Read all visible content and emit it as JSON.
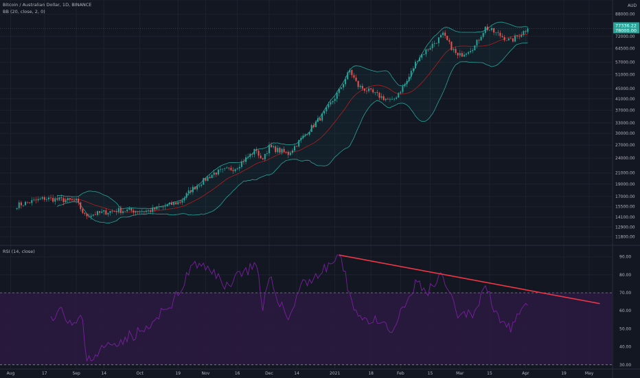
{
  "header": {
    "symbol_line": "Bitcoin / Australian Dollar, 1D, BINANCE",
    "bb_legend": "BB (20, close, 2, 0)",
    "rsi_legend": "RSI (14, close)",
    "currency": "AUD"
  },
  "colors": {
    "background": "#131722",
    "up_candle": "#26a69a",
    "down_candle": "#ef5350",
    "bb_band": "#26a69a",
    "bb_basis": "#b71c1c",
    "rsi_line": "#7b1fa2",
    "rsi_band_fill": "#2a1a3f",
    "trendline": "#f23645",
    "price_tag": "#26a69a"
  },
  "chart_data": [
    {
      "type": "candlestick",
      "name": "price",
      "y_scale": "log",
      "ylim": [
        11000,
        100000
      ],
      "y_ticks": [
        "100000.00",
        "88000.00",
        "72000.00",
        "64500.00",
        "57000.00",
        "51000.00",
        "45000.00",
        "41000.00",
        "37000.00",
        "33000.00",
        "30000.00",
        "27000.00",
        "24000.00",
        "21000.00",
        "19000.00",
        "17000.00",
        "15500.00",
        "14100.00",
        "12900.00",
        "11800.00"
      ],
      "last_price": "77336.22",
      "last_price_sub": "78000.00",
      "bollinger_bands": {
        "length": 20,
        "source": "close",
        "mult": 2,
        "offset": 0
      },
      "close_keypoints": [
        {
          "date": "2020-08-04",
          "close": 15700
        },
        {
          "date": "2020-08-17",
          "close": 16700
        },
        {
          "date": "2020-09-01",
          "close": 16300
        },
        {
          "date": "2020-09-05",
          "close": 14300
        },
        {
          "date": "2020-09-20",
          "close": 15000
        },
        {
          "date": "2020-10-05",
          "close": 14900
        },
        {
          "date": "2020-10-20",
          "close": 16200
        },
        {
          "date": "2020-10-25",
          "close": 18000
        },
        {
          "date": "2020-11-05",
          "close": 21000
        },
        {
          "date": "2020-11-15",
          "close": 22000
        },
        {
          "date": "2020-11-25",
          "close": 26000
        },
        {
          "date": "2020-11-27",
          "close": 23500
        },
        {
          "date": "2020-12-01",
          "close": 26500
        },
        {
          "date": "2020-12-10",
          "close": 25000
        },
        {
          "date": "2020-12-16",
          "close": 28500
        },
        {
          "date": "2020-12-27",
          "close": 36000
        },
        {
          "date": "2021-01-03",
          "close": 44000
        },
        {
          "date": "2021-01-08",
          "close": 53000
        },
        {
          "date": "2021-01-12",
          "close": 46000
        },
        {
          "date": "2021-01-22",
          "close": 42000
        },
        {
          "date": "2021-01-28",
          "close": 40000
        },
        {
          "date": "2021-02-04",
          "close": 48000
        },
        {
          "date": "2021-02-09",
          "close": 59000
        },
        {
          "date": "2021-02-21",
          "close": 73000
        },
        {
          "date": "2021-02-28",
          "close": 60000
        },
        {
          "date": "2021-03-08",
          "close": 66000
        },
        {
          "date": "2021-03-13",
          "close": 78000
        },
        {
          "date": "2021-03-25",
          "close": 69000
        },
        {
          "date": "2021-04-02",
          "close": 77300
        }
      ]
    },
    {
      "type": "line",
      "name": "RSI",
      "ylim": [
        28,
        96
      ],
      "y_ticks": [
        "90.00",
        "80.00",
        "70.00",
        "60.00",
        "50.00",
        "40.00",
        "30.00"
      ],
      "overbought": 70,
      "oversold": 30,
      "rsi_keypoints": [
        {
          "date": "2020-08-20",
          "value": 57
        },
        {
          "date": "2020-08-25",
          "value": 62
        },
        {
          "date": "2020-08-30",
          "value": 52
        },
        {
          "date": "2020-09-04",
          "value": 55
        },
        {
          "date": "2020-09-06",
          "value": 32
        },
        {
          "date": "2020-09-12",
          "value": 38
        },
        {
          "date": "2020-09-22",
          "value": 44
        },
        {
          "date": "2020-10-05",
          "value": 50
        },
        {
          "date": "2020-10-20",
          "value": 70
        },
        {
          "date": "2020-10-25",
          "value": 85
        },
        {
          "date": "2020-11-05",
          "value": 83
        },
        {
          "date": "2020-11-10",
          "value": 72
        },
        {
          "date": "2020-11-15",
          "value": 80
        },
        {
          "date": "2020-11-25",
          "value": 85
        },
        {
          "date": "2020-11-28",
          "value": 60
        },
        {
          "date": "2020-12-01",
          "value": 78
        },
        {
          "date": "2020-12-10",
          "value": 55
        },
        {
          "date": "2020-12-16",
          "value": 75
        },
        {
          "date": "2020-12-25",
          "value": 80
        },
        {
          "date": "2021-01-03",
          "value": 91
        },
        {
          "date": "2021-01-08",
          "value": 70
        },
        {
          "date": "2021-01-12",
          "value": 57
        },
        {
          "date": "2021-01-22",
          "value": 53
        },
        {
          "date": "2021-01-28",
          "value": 48
        },
        {
          "date": "2021-02-04",
          "value": 65
        },
        {
          "date": "2021-02-09",
          "value": 76
        },
        {
          "date": "2021-02-13",
          "value": 70
        },
        {
          "date": "2021-02-21",
          "value": 79
        },
        {
          "date": "2021-02-28",
          "value": 56
        },
        {
          "date": "2021-03-08",
          "value": 60
        },
        {
          "date": "2021-03-13",
          "value": 74
        },
        {
          "date": "2021-03-18",
          "value": 60
        },
        {
          "date": "2021-03-25",
          "value": 48
        },
        {
          "date": "2021-03-29",
          "value": 58
        },
        {
          "date": "2021-04-02",
          "value": 63
        }
      ],
      "trendline": {
        "from": {
          "date": "2021-01-03",
          "value": 91
        },
        "to": {
          "date": "2021-05-06",
          "value": 64
        }
      }
    }
  ],
  "x_axis": {
    "start": "2020-07-27",
    "end": "2021-05-12",
    "ticks": [
      {
        "date": "2020-08-01",
        "label": "Aug"
      },
      {
        "date": "2020-08-17",
        "label": "17"
      },
      {
        "date": "2020-09-01",
        "label": "Sep"
      },
      {
        "date": "2020-09-14",
        "label": "14"
      },
      {
        "date": "2020-10-01",
        "label": "Oct"
      },
      {
        "date": "2020-10-19",
        "label": "19"
      },
      {
        "date": "2020-11-01",
        "label": "Nov"
      },
      {
        "date": "2020-11-16",
        "label": "16"
      },
      {
        "date": "2020-12-01",
        "label": "Dec"
      },
      {
        "date": "2020-12-14",
        "label": "14"
      },
      {
        "date": "2021-01-01",
        "label": "2021"
      },
      {
        "date": "2021-01-18",
        "label": "18"
      },
      {
        "date": "2021-02-01",
        "label": "Feb"
      },
      {
        "date": "2021-02-15",
        "label": "15"
      },
      {
        "date": "2021-03-01",
        "label": "Mar"
      },
      {
        "date": "2021-03-15",
        "label": "15"
      },
      {
        "date": "2021-04-01",
        "label": "Apr"
      },
      {
        "date": "2021-04-19",
        "label": "19"
      },
      {
        "date": "2021-05-01",
        "label": "May"
      }
    ]
  }
}
